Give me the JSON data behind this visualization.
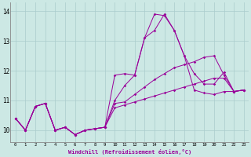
{
  "xlabel": "Windchill (Refroidissement éolien,°C)",
  "xlim": [
    -0.5,
    23.5
  ],
  "ylim": [
    9.6,
    14.3
  ],
  "yticks": [
    10,
    11,
    12,
    13,
    14
  ],
  "xticks": [
    0,
    1,
    2,
    3,
    4,
    5,
    6,
    7,
    8,
    9,
    10,
    11,
    12,
    13,
    14,
    15,
    16,
    17,
    18,
    19,
    20,
    21,
    22,
    23
  ],
  "bg_color": "#cce8e4",
  "line_color": "#990099",
  "grid_color": "#aacccc",
  "x": [
    0,
    1,
    2,
    3,
    4,
    5,
    6,
    7,
    8,
    9,
    10,
    11,
    12,
    13,
    14,
    15,
    16,
    17,
    18,
    19,
    20,
    21,
    22,
    23
  ],
  "lines": [
    [
      10.4,
      10.0,
      10.8,
      10.9,
      10.0,
      10.1,
      9.85,
      10.0,
      10.05,
      10.1,
      11.85,
      11.9,
      11.85,
      13.1,
      13.9,
      13.85,
      13.35,
      12.5,
      11.35,
      11.25,
      11.2,
      11.3,
      11.3,
      11.35
    ],
    [
      10.4,
      10.0,
      10.8,
      10.9,
      10.0,
      10.1,
      9.85,
      10.0,
      10.05,
      10.1,
      11.0,
      11.5,
      11.85,
      13.1,
      13.35,
      13.9,
      13.35,
      12.5,
      11.9,
      11.55,
      11.55,
      11.95,
      11.3,
      11.35
    ],
    [
      10.4,
      10.0,
      10.8,
      10.9,
      10.0,
      10.1,
      9.85,
      10.0,
      10.05,
      10.1,
      10.9,
      10.95,
      11.2,
      11.45,
      11.7,
      11.9,
      12.1,
      12.2,
      12.3,
      12.45,
      12.5,
      11.85,
      11.3,
      11.35
    ],
    [
      10.4,
      10.0,
      10.8,
      10.9,
      10.0,
      10.1,
      9.85,
      10.0,
      10.05,
      10.1,
      10.75,
      10.85,
      10.95,
      11.05,
      11.15,
      11.25,
      11.35,
      11.45,
      11.55,
      11.65,
      11.75,
      11.75,
      11.3,
      11.35
    ]
  ]
}
